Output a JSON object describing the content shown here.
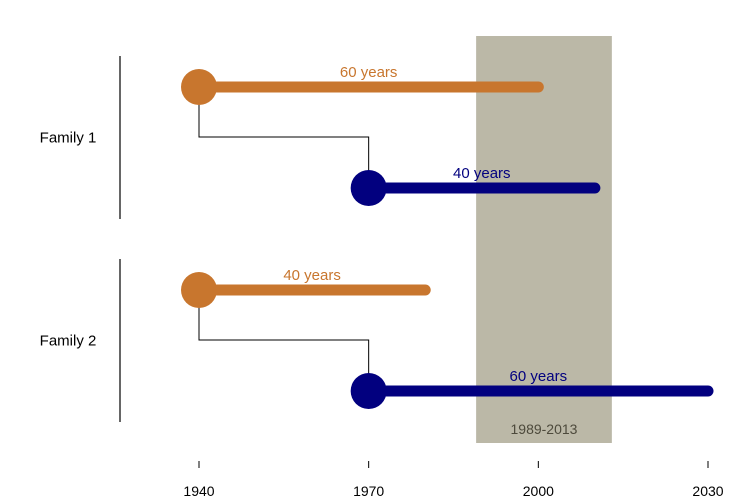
{
  "chart_data": {
    "type": "timeline",
    "title": "",
    "xlabel": "",
    "ylabel": "",
    "xlim": [
      1925,
      2035
    ],
    "x_ticks": [
      1940,
      1970,
      2000,
      2030
    ],
    "x_tick_labels": [
      "1940",
      "1970",
      "2000",
      "2030"
    ],
    "highlight": {
      "start": 1989,
      "end": 2013,
      "label": "1989-2013",
      "color": "#bbb8a7",
      "label_color": "#4d4a3c"
    },
    "families": [
      {
        "label": "Family 1",
        "members": [
          {
            "role": "parent",
            "start": 1940,
            "end": 2000,
            "label": "60 years",
            "color": "#c8762e"
          },
          {
            "role": "child",
            "start": 1970,
            "end": 2010,
            "label": "40 years",
            "color": "#02007f"
          }
        ]
      },
      {
        "label": "Family 2",
        "members": [
          {
            "role": "parent",
            "start": 1940,
            "end": 1980,
            "label": "40 years",
            "color": "#c8762e"
          },
          {
            "role": "child",
            "start": 1970,
            "end": 2030,
            "label": "60 years",
            "color": "#02007f"
          }
        ]
      }
    ],
    "grid": false,
    "legend": "none"
  }
}
